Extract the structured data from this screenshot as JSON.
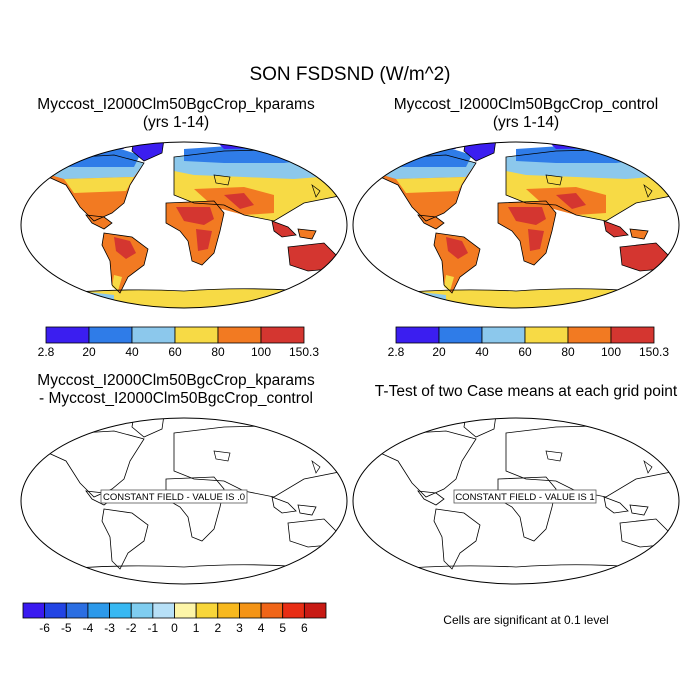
{
  "figure": {
    "title": "SON FSDSND (W/m^2)",
    "panels": [
      {
        "title_line1": "Myccost_I2000Clm50BgcCrop_kparams",
        "title_line2": "(yrs 1-14)"
      },
      {
        "title_line1": "Myccost_I2000Clm50BgcCrop_control",
        "title_line2": "(yrs 1-14)"
      },
      {
        "title_line1": "Myccost_I2000Clm50BgcCrop_kparams",
        "title_line2": "- Myccost_I2000Clm50BgcCrop_control",
        "box_label": "CONSTANT FIELD - VALUE IS .0"
      },
      {
        "title_line1": "T-Test of two Case means at each grid point",
        "box_label": "CONSTANT FIELD - VALUE IS 1"
      }
    ],
    "footnote": "Cells are significant at 0.1 level"
  },
  "colorbars": {
    "absolute": {
      "labels": [
        "2.8",
        "20",
        "40",
        "60",
        "80",
        "100",
        "150.3"
      ],
      "colors": [
        "#3b1ef0",
        "#2f7ce8",
        "#8cc8ec",
        "#f7da45",
        "#f27a22",
        "#d43630"
      ]
    },
    "difference": {
      "labels": [
        "-6",
        "-5",
        "-4",
        "-3",
        "-2",
        "-1",
        "0",
        "1",
        "2",
        "3",
        "4",
        "5",
        "6"
      ],
      "colors": [
        "#3a1af0",
        "#2244e4",
        "#2b6ee2",
        "#2c99ea",
        "#37b8f2",
        "#7fcdf0",
        "#b7e0f7",
        "#fdf5a8",
        "#f8d63a",
        "#f7b81e",
        "#f49416",
        "#f06518",
        "#e82d14",
        "#c81a14"
      ]
    }
  },
  "chart_data": [
    {
      "type": "heatmap",
      "title": "Myccost_I2000Clm50BgcCrop_kparams (yrs 1-14)",
      "variable": "SON FSDSND",
      "units": "W/m^2",
      "range": [
        2.8,
        150.3
      ],
      "levels": [
        2.8,
        20,
        40,
        60,
        80,
        100,
        150.3
      ]
    },
    {
      "type": "heatmap",
      "title": "Myccost_I2000Clm50BgcCrop_control (yrs 1-14)",
      "variable": "SON FSDSND",
      "units": "W/m^2",
      "range": [
        2.8,
        150.3
      ],
      "levels": [
        2.8,
        20,
        40,
        60,
        80,
        100,
        150.3
      ]
    },
    {
      "type": "heatmap",
      "title": "Myccost_I2000Clm50BgcCrop_kparams - Myccost_I2000Clm50BgcCrop_control",
      "constant_value": 0,
      "levels": [
        -6,
        -5,
        -4,
        -3,
        -2,
        -1,
        0,
        1,
        2,
        3,
        4,
        5,
        6
      ]
    },
    {
      "type": "heatmap",
      "title": "T-Test of two Case means at each grid point",
      "constant_value": 1
    }
  ]
}
